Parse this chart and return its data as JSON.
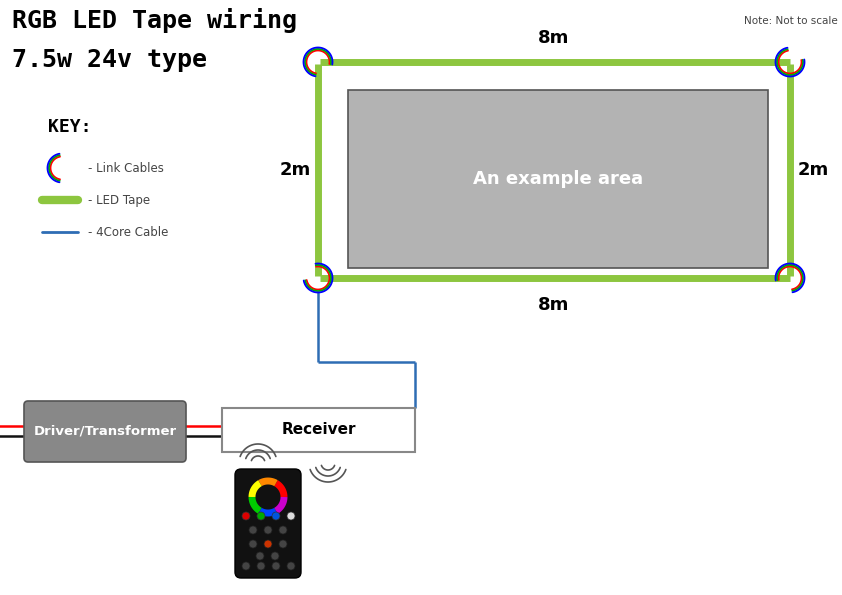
{
  "title_line1": "RGB LED Tape wiring",
  "title_line2": "7.5w 24v type",
  "note": "Note: Not to scale",
  "key_title": "KEY:",
  "key_items": [
    "- Link Cables",
    "- LED Tape",
    "- 4Core Cable"
  ],
  "area_label": "An example area",
  "dim_top": "8m",
  "dim_bottom": "8m",
  "dim_left": "2m",
  "dim_right": "2m",
  "driver_label": "Driver/Transformer",
  "receiver_label": "Receiver",
  "bg_color": "#ffffff",
  "led_tape_color": "#8dc63f",
  "cable_4core_color": "#2e6db4",
  "area_fill": "#b3b3b3",
  "area_border": "#555555",
  "driver_fill": "#888888",
  "receiver_fill": "#ffffff",
  "receiver_border": "#888888",
  "link_cable_colors": [
    "#ff0000",
    "#00aa00",
    "#0000ff"
  ],
  "title_color": "#000000",
  "tape_lw": 5,
  "cable_lw": 1.8,
  "red_wire_color": "#ff0000",
  "black_wire_color": "#111111"
}
